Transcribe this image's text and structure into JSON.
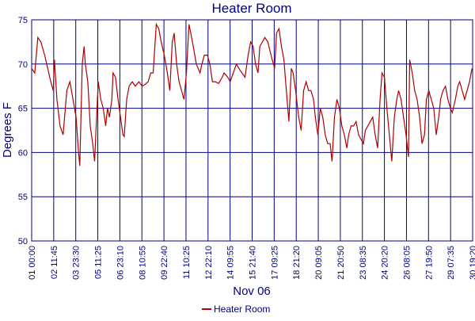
{
  "chart_data": {
    "type": "line",
    "title": "Heater Room",
    "xlabel": "Nov 06",
    "ylabel": "Degrees F",
    "xlim": [
      0,
      715
    ],
    "ylim": [
      50,
      75
    ],
    "yticks": [
      50,
      55,
      60,
      65,
      70,
      75
    ],
    "xticks": [
      {
        "value": 0,
        "label": "01 00:00"
      },
      {
        "value": 35.75,
        "label": "02 11:45"
      },
      {
        "value": 71.5,
        "label": "03 23:30"
      },
      {
        "value": 107.25,
        "label": "05 11:25"
      },
      {
        "value": 143,
        "label": "06 23:10"
      },
      {
        "value": 178.75,
        "label": "08 10:55"
      },
      {
        "value": 214.5,
        "label": "09 22:40"
      },
      {
        "value": 250.25,
        "label": "11 10:25"
      },
      {
        "value": 286,
        "label": "12 22:10"
      },
      {
        "value": 321.75,
        "label": "14 09:55"
      },
      {
        "value": 357.5,
        "label": "15 21:40"
      },
      {
        "value": 393.25,
        "label": "17 09:25"
      },
      {
        "value": 429,
        "label": "18 21:20"
      },
      {
        "value": 464.75,
        "label": "20 09:05"
      },
      {
        "value": 500.5,
        "label": "21 20:50"
      },
      {
        "value": 536.25,
        "label": "23 08:35"
      },
      {
        "value": 572,
        "label": "24 20:20"
      },
      {
        "value": 607.75,
        "label": "26 08:05"
      },
      {
        "value": 643.5,
        "label": "27 19:50"
      },
      {
        "value": 679.25,
        "label": "29 07:35"
      },
      {
        "value": 715,
        "label": "30 19:20"
      }
    ],
    "grid": true,
    "legend": "bottom",
    "x": [
      0,
      5,
      10,
      15,
      21,
      26,
      31,
      35,
      37,
      41,
      46,
      51,
      57,
      62,
      67,
      72,
      76,
      78,
      82,
      85,
      87,
      91,
      95,
      99,
      102,
      104,
      108,
      112,
      116,
      120,
      123,
      126,
      130,
      132,
      136,
      140,
      144,
      148,
      150,
      154,
      158,
      163,
      168,
      174,
      179,
      184,
      189,
      193,
      197,
      202,
      206,
      210,
      215,
      220,
      224,
      228,
      231,
      235,
      239,
      243,
      247,
      251,
      255,
      258,
      262,
      267,
      273,
      276,
      280,
      285,
      289,
      293,
      298,
      303,
      309,
      312,
      318,
      322,
      327,
      332,
      336,
      341,
      346,
      351,
      355,
      359,
      363,
      367,
      370,
      374,
      378,
      383,
      388,
      394,
      397,
      401,
      405,
      409,
      413,
      417,
      421,
      424,
      428,
      433,
      437,
      441,
      445,
      449,
      453,
      457,
      460,
      464,
      468,
      472,
      476,
      480,
      484,
      487,
      491,
      495,
      499,
      503,
      507,
      511,
      514,
      518,
      522,
      526,
      530,
      534,
      538,
      541,
      545,
      549,
      553,
      557,
      561,
      565,
      568,
      572,
      576,
      580,
      584,
      588,
      592,
      595,
      599,
      603,
      607,
      611,
      613,
      617,
      621,
      625,
      629,
      633,
      637,
      640,
      644,
      648,
      652,
      656,
      660,
      663,
      667,
      671,
      675,
      679,
      682,
      687,
      691,
      694,
      698,
      702,
      706,
      710,
      714
    ],
    "series": [
      {
        "name": "Heater Room",
        "color": "#b00000",
        "values": [
          69.5,
          69,
          73,
          72.5,
          71,
          69.5,
          68,
          67,
          70.5,
          66,
          63,
          62,
          67,
          68,
          66,
          64,
          60,
          58.5,
          70,
          72,
          70,
          68,
          63,
          61,
          59,
          62,
          68,
          66,
          65,
          63,
          65,
          64,
          66,
          69,
          68.5,
          66,
          64,
          62,
          61.8,
          66,
          67.5,
          68,
          67.5,
          68,
          67.5,
          67.7,
          68,
          69,
          69,
          74.5,
          74,
          72.5,
          71,
          69,
          67,
          72.5,
          73.5,
          70,
          68,
          67,
          66,
          69,
          74.5,
          73.5,
          72,
          70,
          69,
          70,
          71,
          71,
          70,
          68,
          68,
          67.8,
          68.5,
          69,
          68.5,
          68,
          69,
          70,
          69.5,
          69,
          68.5,
          71,
          72.5,
          72,
          70,
          69,
          72,
          72.5,
          73,
          72.5,
          71,
          69.5,
          73.5,
          74,
          72,
          70.5,
          67,
          63.5,
          69.5,
          69,
          67,
          64,
          62.5,
          67,
          68,
          67,
          67,
          66,
          64,
          62,
          65,
          64,
          62,
          61,
          61,
          59,
          64,
          66,
          65,
          63,
          62,
          60.5,
          62,
          63,
          63,
          63.5,
          62,
          61.5,
          61,
          62.5,
          63,
          63.5,
          64,
          62,
          60.5,
          66,
          69,
          68.5,
          65,
          62,
          59,
          64,
          66,
          67,
          66,
          64,
          62,
          59.5,
          70.5,
          69,
          67,
          66,
          64,
          61,
          62,
          66,
          67,
          66,
          65,
          62,
          64,
          66,
          67,
          67.5,
          66,
          65,
          64.5,
          66,
          67.5,
          68,
          67,
          66,
          67,
          68,
          69.5
        ]
      }
    ]
  }
}
